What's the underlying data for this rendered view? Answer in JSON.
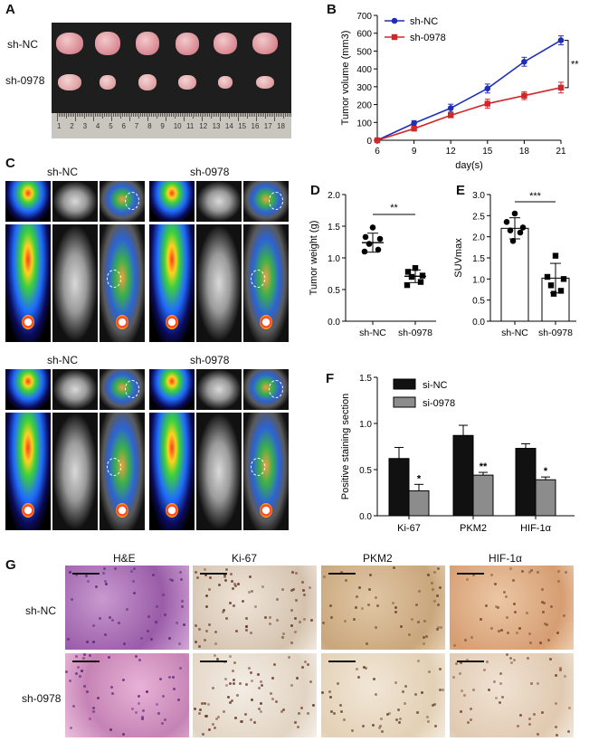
{
  "panels": {
    "A": {
      "letter": "A",
      "row_labels": [
        "sh-NC",
        "sh-0978"
      ],
      "ruler_numbers": [
        "1",
        "2",
        "3",
        "4",
        "5",
        "6",
        "7",
        "8",
        "9",
        "10",
        "11",
        "12",
        "13",
        "14",
        "15",
        "16",
        "17",
        "18"
      ]
    },
    "B": {
      "letter": "B"
    },
    "C": {
      "letter": "C",
      "group_labels": [
        "sh-NC",
        "sh-0978",
        "sh-NC",
        "sh-0978"
      ]
    },
    "D": {
      "letter": "D"
    },
    "E": {
      "letter": "E"
    },
    "F": {
      "letter": "F"
    },
    "G": {
      "letter": "G",
      "col_labels": [
        "H&E",
        "Ki-67",
        "PKM2",
        "HIF-1α"
      ],
      "row_labels": [
        "sh-NC",
        "sh-0978"
      ]
    }
  },
  "colors": {
    "sh_nc": "#1f2fb5",
    "sh_0978": "#d0282a",
    "bar_dark": "#111111",
    "bar_gray": "#8c8c8c",
    "he_stain": "#b07ab8",
    "dab_stain": "#e8d2b8"
  },
  "chart_data": [
    {
      "id": "B",
      "type": "line",
      "xlabel": "day(s)",
      "ylabel": "Tumor volume (mm3)",
      "x": [
        6,
        9,
        12,
        15,
        18,
        21
      ],
      "xlim": [
        6,
        21
      ],
      "ylim": [
        0,
        700
      ],
      "yticks": [
        "0",
        "100",
        "200",
        "300",
        "400",
        "500",
        "600",
        "700"
      ],
      "xticks": [
        "6",
        "9",
        "12",
        "15",
        "18",
        "21"
      ],
      "series": [
        {
          "name": "sh-NC",
          "values": [
            0,
            95,
            180,
            290,
            440,
            560
          ],
          "err": [
            0,
            15,
            22,
            25,
            25,
            25
          ]
        },
        {
          "name": "sh-0978",
          "values": [
            0,
            65,
            140,
            205,
            250,
            295
          ],
          "err": [
            0,
            8,
            10,
            25,
            22,
            30
          ]
        }
      ],
      "significance": "**",
      "legend": "top-left"
    },
    {
      "id": "D",
      "type": "scatter",
      "ylabel": "Tumor weight (g)",
      "categories": [
        "sh-NC",
        "sh-0978"
      ],
      "ylim": [
        0,
        2.0
      ],
      "yticks": [
        "0.0",
        "0.5",
        "1.0",
        "1.5",
        "2.0"
      ],
      "means": [
        1.24,
        0.71
      ],
      "sd": [
        0.15,
        0.1
      ],
      "points": [
        [
          1.48,
          1.33,
          1.3,
          1.22,
          1.13,
          1.1
        ],
        [
          0.84,
          0.78,
          0.72,
          0.7,
          0.62,
          0.57
        ]
      ],
      "significance": "**"
    },
    {
      "id": "E",
      "type": "bar",
      "ylabel": "SUVmax",
      "categories": [
        "sh-NC",
        "sh-0978"
      ],
      "ylim": [
        0,
        3.0
      ],
      "yticks": [
        "0.0",
        "0.5",
        "1.0",
        "1.5",
        "2.0",
        "2.5",
        "3.0"
      ],
      "values": [
        2.2,
        1.02
      ],
      "sd": [
        0.25,
        0.35
      ],
      "points": [
        [
          2.55,
          2.35,
          2.22,
          2.15,
          2.1,
          1.9
        ],
        [
          1.55,
          1.05,
          1.0,
          0.85,
          0.72,
          0.65
        ]
      ],
      "significance": "***"
    },
    {
      "id": "F",
      "type": "bar",
      "ylabel": "Positive staining section",
      "categories": [
        "Ki-67",
        "PKM2",
        "HIF-1α"
      ],
      "ylim": [
        0,
        1.5
      ],
      "yticks": [
        "0.0",
        "0.5",
        "1.0",
        "1.5"
      ],
      "series": [
        {
          "name": "si-NC",
          "values": [
            0.62,
            0.87,
            0.73
          ],
          "err": [
            0.12,
            0.11,
            0.05
          ]
        },
        {
          "name": "si-0978",
          "values": [
            0.27,
            0.44,
            0.39
          ],
          "err": [
            0.07,
            0.03,
            0.03
          ]
        }
      ],
      "significance": [
        "*",
        "**",
        "*"
      ],
      "legend": "top-left"
    }
  ]
}
